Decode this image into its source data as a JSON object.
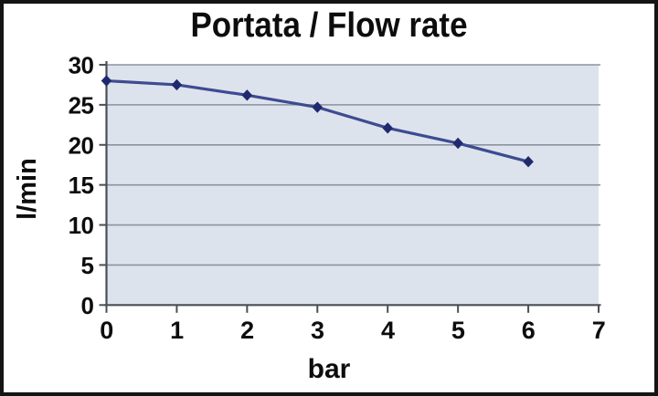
{
  "chart_data": {
    "type": "line",
    "title": "Portata / Flow rate",
    "xlabel": "bar",
    "ylabel": "l/min",
    "x": [
      0,
      1,
      2,
      3,
      4,
      5,
      6
    ],
    "series": [
      {
        "name": "Portata / Flow rate",
        "values": [
          28,
          27.5,
          26.2,
          24.7,
          22.1,
          20.2,
          17.9
        ]
      }
    ],
    "xlim": [
      0,
      7
    ],
    "ylim": [
      0,
      30
    ],
    "x_ticks": [
      0,
      1,
      2,
      3,
      4,
      5,
      6,
      7
    ],
    "y_ticks": [
      0,
      5,
      10,
      15,
      20,
      25,
      30
    ],
    "grid": "horizontal",
    "legend": "none",
    "marker": "diamond",
    "colors": {
      "line": "#3d4b92",
      "marker": "#1f2a6e",
      "plot_background": "#dde3ec",
      "gridline": "#8d939e",
      "axis": "#4a4e57",
      "text": "#0d0d0d",
      "frame_border": "#141414",
      "background": "#ffffff"
    }
  }
}
